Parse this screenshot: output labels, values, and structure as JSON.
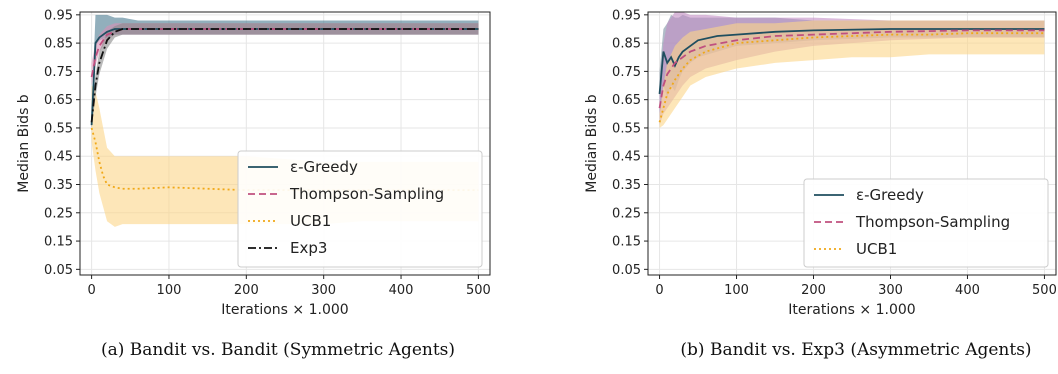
{
  "chart_data": [
    {
      "type": "line",
      "caption": "(a) Bandit vs. Bandit (Symmetric Agents)",
      "xlabel": "Iterations × 1.000",
      "ylabel": "Median Bids b",
      "xlim": [
        -15,
        515
      ],
      "ylim": [
        0.03,
        0.96
      ],
      "xticks": [
        "0",
        "100",
        "200",
        "300",
        "400",
        "500"
      ],
      "yticks": [
        "0.05",
        "0.15",
        "0.25",
        "0.35",
        "0.45",
        "0.55",
        "0.65",
        "0.75",
        "0.85",
        "0.95"
      ],
      "grid": true,
      "legend_position": "bottom-right",
      "series": [
        {
          "name": "ε-Greedy",
          "color": "#1f4e5f",
          "dash": "solid",
          "x": [
            0,
            5,
            10,
            20,
            30,
            40,
            60,
            100,
            200,
            300,
            400,
            500
          ],
          "y": [
            0.56,
            0.85,
            0.87,
            0.89,
            0.9,
            0.9,
            0.9,
            0.9,
            0.9,
            0.9,
            0.9,
            0.9
          ],
          "band_low": [
            0.55,
            0.84,
            0.86,
            0.87,
            0.88,
            0.88,
            0.88,
            0.88,
            0.88,
            0.88,
            0.88,
            0.88
          ],
          "band_high": [
            0.6,
            0.95,
            0.95,
            0.95,
            0.94,
            0.94,
            0.93,
            0.93,
            0.93,
            0.93,
            0.93,
            0.93
          ],
          "band_color": "#4a7a8f"
        },
        {
          "name": "Thompson-Sampling",
          "color": "#c0507f",
          "dash": "dashed",
          "x": [
            0,
            5,
            10,
            20,
            30,
            40,
            60,
            100,
            200,
            300,
            400,
            500
          ],
          "y": [
            0.73,
            0.8,
            0.84,
            0.88,
            0.89,
            0.9,
            0.9,
            0.9,
            0.9,
            0.9,
            0.9,
            0.9
          ],
          "band_low": [
            0.7,
            0.77,
            0.82,
            0.86,
            0.88,
            0.88,
            0.88,
            0.88,
            0.88,
            0.88,
            0.88,
            0.88
          ],
          "band_high": [
            0.78,
            0.85,
            0.88,
            0.91,
            0.92,
            0.92,
            0.92,
            0.92,
            0.92,
            0.92,
            0.92,
            0.92
          ],
          "band_color": "#d98fb5"
        },
        {
          "name": "UCB1",
          "color": "#f0a818",
          "dash": "dotted",
          "x": [
            0,
            5,
            10,
            15,
            20,
            30,
            40,
            60,
            100,
            150,
            200,
            250,
            300,
            350,
            400,
            450,
            500
          ],
          "y": [
            0.55,
            0.5,
            0.43,
            0.38,
            0.35,
            0.34,
            0.335,
            0.335,
            0.34,
            0.335,
            0.33,
            0.33,
            0.33,
            0.33,
            0.33,
            0.33,
            0.33
          ],
          "band_low": [
            0.5,
            0.4,
            0.32,
            0.27,
            0.22,
            0.2,
            0.21,
            0.21,
            0.21,
            0.21,
            0.21,
            0.21,
            0.21,
            0.22,
            0.22,
            0.22,
            0.22
          ],
          "band_high": [
            0.7,
            0.68,
            0.62,
            0.55,
            0.48,
            0.45,
            0.45,
            0.45,
            0.45,
            0.45,
            0.45,
            0.44,
            0.43,
            0.43,
            0.43,
            0.43,
            0.43
          ],
          "band_color": "#fcd588"
        },
        {
          "name": "Exp3",
          "color": "#111111",
          "dash": "dashdot",
          "x": [
            0,
            5,
            10,
            20,
            30,
            40,
            60,
            100,
            200,
            300,
            400,
            500
          ],
          "y": [
            0.57,
            0.7,
            0.78,
            0.86,
            0.89,
            0.9,
            0.9,
            0.9,
            0.9,
            0.9,
            0.9,
            0.9
          ],
          "band_low": [
            0.55,
            0.66,
            0.74,
            0.83,
            0.87,
            0.88,
            0.88,
            0.88,
            0.88,
            0.88,
            0.88,
            0.88
          ],
          "band_high": [
            0.6,
            0.74,
            0.82,
            0.89,
            0.91,
            0.92,
            0.92,
            0.92,
            0.92,
            0.92,
            0.92,
            0.92
          ],
          "band_color": "#8a8a8a"
        }
      ]
    },
    {
      "type": "line",
      "caption": "(b) Bandit vs. Exp3 (Asymmetric Agents)",
      "xlabel": "Iterations × 1.000",
      "ylabel": "Median Bids b",
      "xlim": [
        -15,
        515
      ],
      "ylim": [
        0.03,
        0.96
      ],
      "xticks": [
        "0",
        "100",
        "200",
        "300",
        "400",
        "500"
      ],
      "yticks": [
        "0.05",
        "0.15",
        "0.25",
        "0.35",
        "0.45",
        "0.55",
        "0.65",
        "0.75",
        "0.85",
        "0.95"
      ],
      "grid": true,
      "legend_position": "bottom-right",
      "series": [
        {
          "name": "ε-Greedy",
          "color": "#1f4e5f",
          "dash": "solid",
          "x": [
            0,
            5,
            10,
            15,
            20,
            25,
            30,
            40,
            50,
            75,
            100,
            150,
            200,
            300,
            400,
            500
          ],
          "y": [
            0.67,
            0.82,
            0.78,
            0.8,
            0.77,
            0.8,
            0.82,
            0.84,
            0.86,
            0.875,
            0.88,
            0.89,
            0.895,
            0.9,
            0.9,
            0.9
          ],
          "band_low": [
            0.58,
            0.7,
            0.66,
            0.7,
            0.68,
            0.72,
            0.75,
            0.78,
            0.8,
            0.82,
            0.84,
            0.85,
            0.86,
            0.87,
            0.87,
            0.87
          ],
          "band_high": [
            0.75,
            0.9,
            0.92,
            0.95,
            0.94,
            0.94,
            0.95,
            0.94,
            0.94,
            0.94,
            0.94,
            0.94,
            0.93,
            0.93,
            0.93,
            0.93
          ],
          "band_color": "#7b8fa3"
        },
        {
          "name": "Thompson-Sampling",
          "color": "#c0507f",
          "dash": "dashed",
          "x": [
            0,
            5,
            10,
            20,
            30,
            40,
            60,
            100,
            150,
            200,
            300,
            400,
            500
          ],
          "y": [
            0.62,
            0.7,
            0.74,
            0.78,
            0.8,
            0.82,
            0.84,
            0.86,
            0.875,
            0.88,
            0.89,
            0.895,
            0.895
          ],
          "band_low": [
            0.56,
            0.6,
            0.62,
            0.66,
            0.7,
            0.73,
            0.76,
            0.79,
            0.82,
            0.84,
            0.86,
            0.87,
            0.87
          ],
          "band_high": [
            0.7,
            0.85,
            0.92,
            0.96,
            0.96,
            0.95,
            0.95,
            0.94,
            0.94,
            0.94,
            0.93,
            0.93,
            0.93
          ],
          "band_color": "#c38ec4"
        },
        {
          "name": "UCB1",
          "color": "#f0a818",
          "dash": "dotted",
          "x": [
            0,
            5,
            10,
            20,
            30,
            40,
            60,
            100,
            150,
            200,
            250,
            300,
            350,
            400,
            450,
            500
          ],
          "y": [
            0.57,
            0.62,
            0.67,
            0.72,
            0.76,
            0.79,
            0.82,
            0.85,
            0.86,
            0.87,
            0.875,
            0.88,
            0.88,
            0.885,
            0.885,
            0.885
          ],
          "band_low": [
            0.55,
            0.56,
            0.58,
            0.62,
            0.66,
            0.7,
            0.73,
            0.76,
            0.78,
            0.79,
            0.8,
            0.8,
            0.81,
            0.81,
            0.81,
            0.81
          ],
          "band_high": [
            0.6,
            0.7,
            0.78,
            0.84,
            0.87,
            0.89,
            0.9,
            0.92,
            0.92,
            0.93,
            0.93,
            0.93,
            0.93,
            0.93,
            0.93,
            0.93
          ],
          "band_color": "#fcd588"
        }
      ]
    }
  ]
}
